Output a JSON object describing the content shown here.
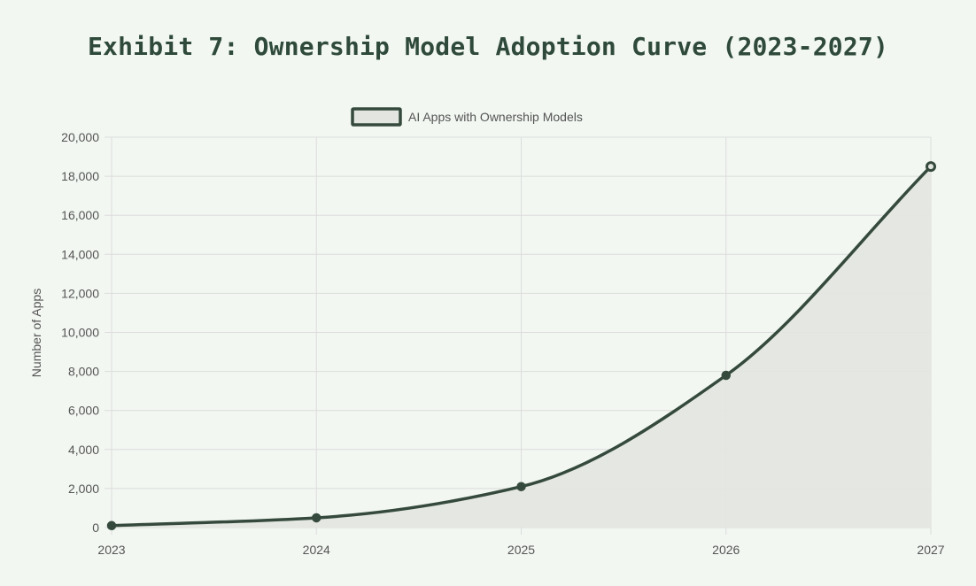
{
  "title": "Exhibit 7: Ownership Model Adoption Curve (2023-2027)",
  "colors": {
    "background": "#f2f7f2",
    "line": "#354a3c",
    "fill": "#e3e6e0",
    "grid": "#dcdcdc",
    "text": "#555555"
  },
  "chart_data": {
    "type": "line",
    "x": [
      "2023",
      "2024",
      "2025",
      "2026",
      "2027"
    ],
    "series": [
      {
        "name": "AI Apps with Ownership Models",
        "values": [
          100,
          500,
          2100,
          7800,
          18500
        ]
      }
    ],
    "ylabel": "Number of Apps",
    "xlabel": "",
    "ylim": [
      0,
      20000
    ],
    "y_ticks": [
      "0",
      "2,000",
      "4,000",
      "6,000",
      "8,000",
      "10,000",
      "12,000",
      "14,000",
      "16,000",
      "18,000",
      "20,000"
    ],
    "filled": true,
    "curve": "smooth",
    "grid": true,
    "legend_position": "top-center"
  }
}
